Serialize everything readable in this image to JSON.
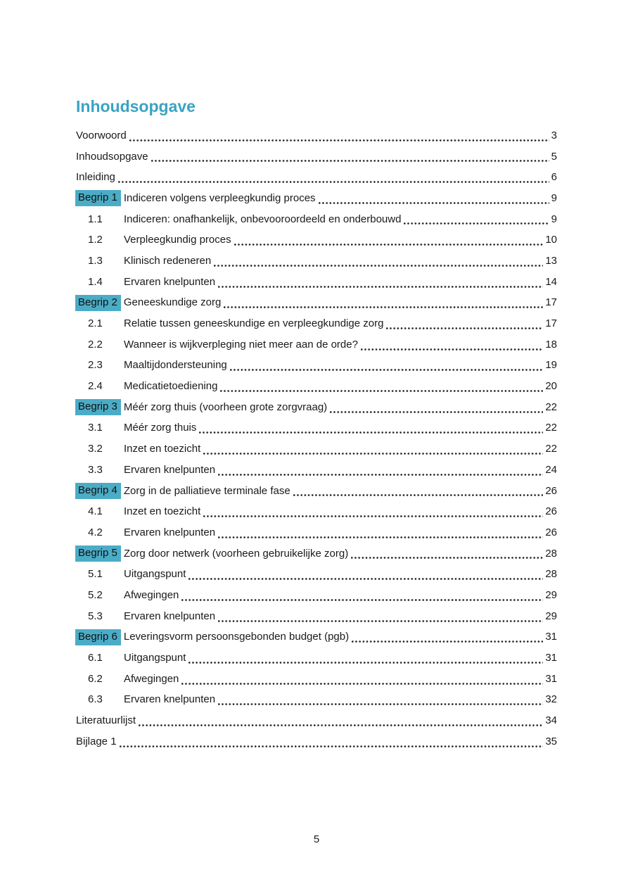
{
  "page": {
    "title": "Inhoudsopgave",
    "footer_page_number": "5",
    "accent_color": "#4bacc6",
    "title_color": "#3aa3c2",
    "text_color": "#1a1a1a"
  },
  "toc": {
    "entries": [
      {
        "type": "top",
        "label": "Voorwoord",
        "page": "3"
      },
      {
        "type": "top",
        "label": "Inhoudsopgave",
        "page": "5"
      },
      {
        "type": "top",
        "label": "Inleiding",
        "page": "6"
      },
      {
        "type": "begrip",
        "badge": "Begrip 1",
        "label": "Indiceren volgens verpleegkundig proces",
        "page": "9"
      },
      {
        "type": "sub",
        "num": "1.1",
        "label": "Indiceren: onafhankelijk, onbevooroordeeld en onderbouwd",
        "page": "9"
      },
      {
        "type": "sub",
        "num": "1.2",
        "label": "Verpleegkundig proces",
        "page": "10"
      },
      {
        "type": "sub",
        "num": "1.3",
        "label": "Klinisch redeneren",
        "page": "13"
      },
      {
        "type": "sub",
        "num": "1.4",
        "label": "Ervaren knelpunten",
        "page": "14"
      },
      {
        "type": "begrip",
        "badge": "Begrip 2",
        "label": "Geneeskundige zorg",
        "page": "17"
      },
      {
        "type": "sub",
        "num": "2.1",
        "label": "Relatie tussen geneeskundige en verpleegkundige zorg",
        "page": "17"
      },
      {
        "type": "sub",
        "num": "2.2",
        "label": "Wanneer is wijkverpleging niet meer aan de orde?",
        "page": "18"
      },
      {
        "type": "sub",
        "num": "2.3",
        "label": "Maaltijdondersteuning",
        "page": "19"
      },
      {
        "type": "sub",
        "num": "2.4",
        "label": "Medicatietoediening",
        "page": "20"
      },
      {
        "type": "begrip",
        "badge": "Begrip 3",
        "label": "Méér zorg thuis (voorheen grote zorgvraag)",
        "page": "22"
      },
      {
        "type": "sub",
        "num": "3.1",
        "label": "Méér zorg thuis",
        "page": "22"
      },
      {
        "type": "sub",
        "num": "3.2",
        "label": "Inzet en toezicht",
        "page": "22"
      },
      {
        "type": "sub",
        "num": "3.3",
        "label": "Ervaren knelpunten",
        "page": "24"
      },
      {
        "type": "begrip",
        "badge": "Begrip 4",
        "label": "Zorg in de palliatieve terminale fase",
        "page": "26"
      },
      {
        "type": "sub",
        "num": "4.1",
        "label": "Inzet en toezicht",
        "page": "26"
      },
      {
        "type": "sub",
        "num": "4.2",
        "label": "Ervaren knelpunten",
        "page": "26"
      },
      {
        "type": "begrip",
        "badge": "Begrip 5",
        "label": "Zorg door netwerk (voorheen gebruikelijke zorg)",
        "page": "28"
      },
      {
        "type": "sub",
        "num": "5.1",
        "label": "Uitgangspunt",
        "page": "28"
      },
      {
        "type": "sub",
        "num": "5.2",
        "label": "Afwegingen",
        "page": "29"
      },
      {
        "type": "sub",
        "num": "5.3",
        "label": "Ervaren knelpunten",
        "page": "29"
      },
      {
        "type": "begrip",
        "badge": "Begrip 6",
        "label": "Leveringsvorm persoonsgebonden budget (pgb)",
        "page": "31"
      },
      {
        "type": "sub",
        "num": "6.1",
        "label": "Uitgangspunt",
        "page": "31"
      },
      {
        "type": "sub",
        "num": "6.2",
        "label": "Afwegingen",
        "page": "31"
      },
      {
        "type": "sub",
        "num": "6.3",
        "label": "Ervaren knelpunten",
        "page": "32"
      },
      {
        "type": "top",
        "label": "Literatuurlijst",
        "page": "34"
      },
      {
        "type": "top",
        "label": "Bijlage 1",
        "page": "35"
      }
    ]
  }
}
